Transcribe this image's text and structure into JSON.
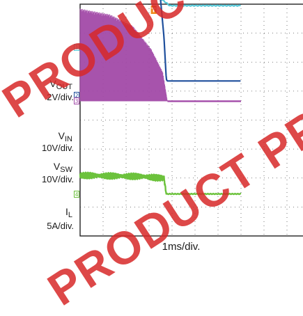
{
  "chart_data": {
    "type": "line",
    "title": "",
    "xlabel": "1ms/div.",
    "x_unit": "ms",
    "xlim": [
      -2.8,
      4.2
    ],
    "trigger_time_ms": 0,
    "grid": true,
    "channels": [
      {
        "channel": "1",
        "name": "VOUT",
        "label_main": "V",
        "label_sub": "OUT",
        "scale": "2V/div.",
        "color": "#55c8d8",
        "zero_div": 1.5,
        "volts_per_div": 2,
        "points": [
          [
            -2.8,
            5.0
          ],
          [
            -2.0,
            4.95
          ],
          [
            -1.0,
            4.7
          ],
          [
            -0.5,
            4.3
          ],
          [
            0.0,
            3.9
          ],
          [
            0.3,
            3.6
          ],
          [
            0.6,
            3.5
          ],
          [
            0.9,
            3.15
          ],
          [
            1.1,
            2.9
          ],
          [
            1.4,
            2.9
          ],
          [
            4.2,
            2.9
          ]
        ]
      },
      {
        "channel": "2",
        "name": "VIN",
        "label_main": "V",
        "label_sub": "IN",
        "scale": "10V/div.",
        "color": "#1e4f9c",
        "zero_div": 3.15,
        "volts_per_div": 10,
        "points": [
          [
            -2.8,
            36
          ],
          [
            0.4,
            36
          ],
          [
            0.7,
            33
          ],
          [
            0.85,
            20
          ],
          [
            0.95,
            5.5
          ],
          [
            1.0,
            5.0
          ],
          [
            4.2,
            5.0
          ]
        ]
      },
      {
        "channel": "3",
        "name": "VSW",
        "label_main": "V",
        "label_sub": "SW",
        "scale": "10V/div.",
        "color": "#a24aa8",
        "zero_div": 3.35,
        "volts_per_div": 10,
        "switching": true,
        "peak_envelope": [
          [
            -2.8,
            32
          ],
          [
            -1.5,
            30
          ],
          [
            -0.5,
            26
          ],
          [
            0.3,
            18
          ],
          [
            0.8,
            10
          ],
          [
            1.0,
            0
          ]
        ],
        "points": [
          [
            1.0,
            0
          ],
          [
            4.2,
            0
          ]
        ]
      },
      {
        "channel": "4",
        "name": "IL",
        "label_main": "I",
        "label_sub": "L",
        "scale": "5A/div.",
        "color": "#6cc23c",
        "zero_div": 6.55,
        "amps_per_div": 5,
        "points": [
          [
            -2.8,
            3.2
          ],
          [
            0.0,
            3.0
          ],
          [
            0.5,
            2.8
          ],
          [
            0.85,
            2.7
          ],
          [
            0.95,
            0
          ],
          [
            4.2,
            0
          ]
        ]
      }
    ],
    "trigger_marker": "T"
  },
  "watermark": "PRODUCT PREVIEW"
}
